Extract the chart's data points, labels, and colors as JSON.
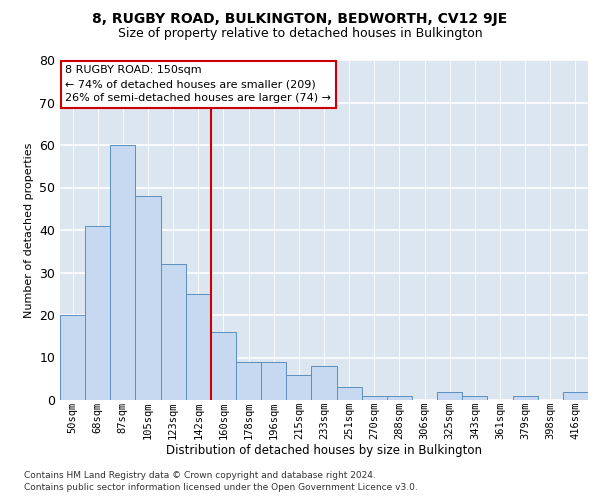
{
  "title": "8, RUGBY ROAD, BULKINGTON, BEDWORTH, CV12 9JE",
  "subtitle": "Size of property relative to detached houses in Bulkington",
  "xlabel": "Distribution of detached houses by size in Bulkington",
  "ylabel": "Number of detached properties",
  "footnote1": "Contains HM Land Registry data © Crown copyright and database right 2024.",
  "footnote2": "Contains public sector information licensed under the Open Government Licence v3.0.",
  "annotation_line0": "8 RUGBY ROAD: 150sqm",
  "annotation_line1": "← 74% of detached houses are smaller (209)",
  "annotation_line2": "26% of semi-detached houses are larger (74) →",
  "bar_labels": [
    "50sqm",
    "68sqm",
    "87sqm",
    "105sqm",
    "123sqm",
    "142sqm",
    "160sqm",
    "178sqm",
    "196sqm",
    "215sqm",
    "233sqm",
    "251sqm",
    "270sqm",
    "288sqm",
    "306sqm",
    "325sqm",
    "343sqm",
    "361sqm",
    "379sqm",
    "398sqm",
    "416sqm"
  ],
  "bar_values": [
    20,
    41,
    60,
    48,
    32,
    25,
    16,
    9,
    9,
    6,
    8,
    3,
    1,
    1,
    0,
    2,
    1,
    0,
    1,
    0,
    2
  ],
  "bar_color": "#c6d9f0",
  "bar_edge_color": "#5a8fc0",
  "vline_color": "#cc0000",
  "annotation_edge_color": "#cc0000",
  "bg_color": "#dce6f1",
  "ylim_max": 80,
  "yticks": [
    0,
    10,
    20,
    30,
    40,
    50,
    60,
    70,
    80
  ],
  "title_fontsize": 10,
  "subtitle_fontsize": 9,
  "ylabel_fontsize": 8,
  "xlabel_fontsize": 8.5,
  "tick_fontsize": 7.5,
  "footnote_fontsize": 6.5,
  "annotation_fontsize": 8
}
